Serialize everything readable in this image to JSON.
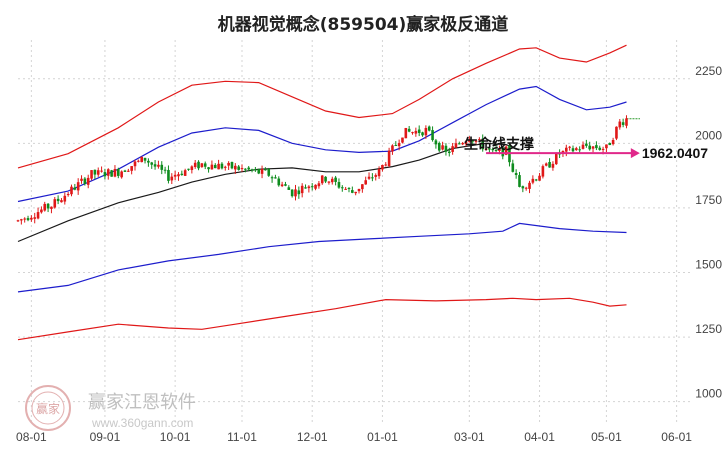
{
  "chart_data": {
    "type": "candlestick",
    "title": "机器视觉概念(859504)赢家极反通道",
    "y_ticks": [
      "2250",
      "2000",
      "1750",
      "1500",
      "1250",
      "1000"
    ],
    "y_tick_values": [
      2250,
      2000,
      1750,
      1500,
      1250,
      1000
    ],
    "ylim": [
      960,
      2400
    ],
    "x_ticks": [
      "08-01",
      "09-01",
      "10-01",
      "11-01",
      "12-01",
      "01-01",
      "03-01",
      "04-01",
      "05-01",
      "06-01"
    ],
    "x_tick_index": [
      4,
      26,
      47,
      67,
      88,
      109,
      135,
      156,
      176,
      197
    ],
    "n_bars": 202,
    "last_bar_index": 182,
    "annotation": {
      "label": "生命线支撑",
      "value": "1962.0407",
      "start_index": 140,
      "end_index": 186,
      "price": 1962.0407
    },
    "last_close_level": 2095,
    "candle_anchors": [
      [
        0,
        1700
      ],
      [
        10,
        1760
      ],
      [
        22,
        1880
      ],
      [
        30,
        1890
      ],
      [
        38,
        1940
      ],
      [
        45,
        1870
      ],
      [
        55,
        1920
      ],
      [
        65,
        1905
      ],
      [
        75,
        1880
      ],
      [
        82,
        1810
      ],
      [
        92,
        1865
      ],
      [
        100,
        1810
      ],
      [
        108,
        1890
      ],
      [
        115,
        2040
      ],
      [
        122,
        2050
      ],
      [
        128,
        1960
      ],
      [
        135,
        2030
      ],
      [
        142,
        1960
      ],
      [
        146,
        1970
      ],
      [
        150,
        1830
      ],
      [
        155,
        1870
      ],
      [
        162,
        1960
      ],
      [
        170,
        1990
      ],
      [
        176,
        1980
      ],
      [
        180,
        2080
      ],
      [
        182,
        2095
      ]
    ],
    "series": [
      {
        "name": "",
        "color": "#e01818",
        "points": [
          [
            0,
            1905
          ],
          [
            15,
            1960
          ],
          [
            30,
            2060
          ],
          [
            42,
            2160
          ],
          [
            52,
            2225
          ],
          [
            62,
            2240
          ],
          [
            72,
            2235
          ],
          [
            82,
            2180
          ],
          [
            92,
            2125
          ],
          [
            102,
            2100
          ],
          [
            112,
            2115
          ],
          [
            120,
            2170
          ],
          [
            130,
            2250
          ],
          [
            140,
            2310
          ],
          [
            150,
            2365
          ],
          [
            155,
            2370
          ],
          [
            162,
            2330
          ],
          [
            170,
            2315
          ],
          [
            177,
            2350
          ],
          [
            182,
            2380
          ]
        ]
      },
      {
        "name": "",
        "color": "#1d1dcc",
        "points": [
          [
            0,
            1775
          ],
          [
            15,
            1815
          ],
          [
            30,
            1900
          ],
          [
            42,
            1985
          ],
          [
            52,
            2040
          ],
          [
            62,
            2060
          ],
          [
            72,
            2050
          ],
          [
            82,
            2000
          ],
          [
            92,
            1975
          ],
          [
            102,
            1965
          ],
          [
            112,
            1970
          ],
          [
            120,
            2010
          ],
          [
            130,
            2080
          ],
          [
            140,
            2150
          ],
          [
            150,
            2210
          ],
          [
            155,
            2220
          ],
          [
            162,
            2170
          ],
          [
            170,
            2130
          ],
          [
            177,
            2140
          ],
          [
            182,
            2160
          ]
        ]
      },
      {
        "name": "",
        "color": "#1a1a1a",
        "points": [
          [
            0,
            1620
          ],
          [
            15,
            1700
          ],
          [
            30,
            1770
          ],
          [
            42,
            1810
          ],
          [
            52,
            1850
          ],
          [
            62,
            1880
          ],
          [
            72,
            1900
          ],
          [
            82,
            1905
          ],
          [
            92,
            1890
          ],
          [
            102,
            1890
          ],
          [
            112,
            1910
          ],
          [
            120,
            1935
          ],
          [
            130,
            1980
          ],
          [
            140,
            2000
          ],
          [
            146,
            1995
          ],
          [
            150,
            1975
          ]
        ]
      },
      {
        "name": "",
        "color": "#1d1dcc",
        "points": [
          [
            0,
            1425
          ],
          [
            15,
            1450
          ],
          [
            30,
            1510
          ],
          [
            45,
            1545
          ],
          [
            60,
            1570
          ],
          [
            75,
            1600
          ],
          [
            90,
            1620
          ],
          [
            105,
            1630
          ],
          [
            120,
            1640
          ],
          [
            135,
            1650
          ],
          [
            145,
            1660
          ],
          [
            150,
            1690
          ],
          [
            162,
            1670
          ],
          [
            172,
            1660
          ],
          [
            182,
            1655
          ]
        ]
      },
      {
        "name": "",
        "color": "#e01818",
        "points": [
          [
            0,
            1240
          ],
          [
            15,
            1270
          ],
          [
            30,
            1300
          ],
          [
            45,
            1285
          ],
          [
            55,
            1280
          ],
          [
            65,
            1300
          ],
          [
            80,
            1330
          ],
          [
            95,
            1360
          ],
          [
            110,
            1395
          ],
          [
            125,
            1390
          ],
          [
            140,
            1395
          ],
          [
            148,
            1400
          ],
          [
            155,
            1395
          ],
          [
            165,
            1400
          ],
          [
            172,
            1385
          ],
          [
            177,
            1370
          ],
          [
            182,
            1375
          ]
        ]
      }
    ]
  },
  "watermark": {
    "text": "赢家江恩软件",
    "url": "www.360gann.com",
    "logo_text": "赢家"
  }
}
